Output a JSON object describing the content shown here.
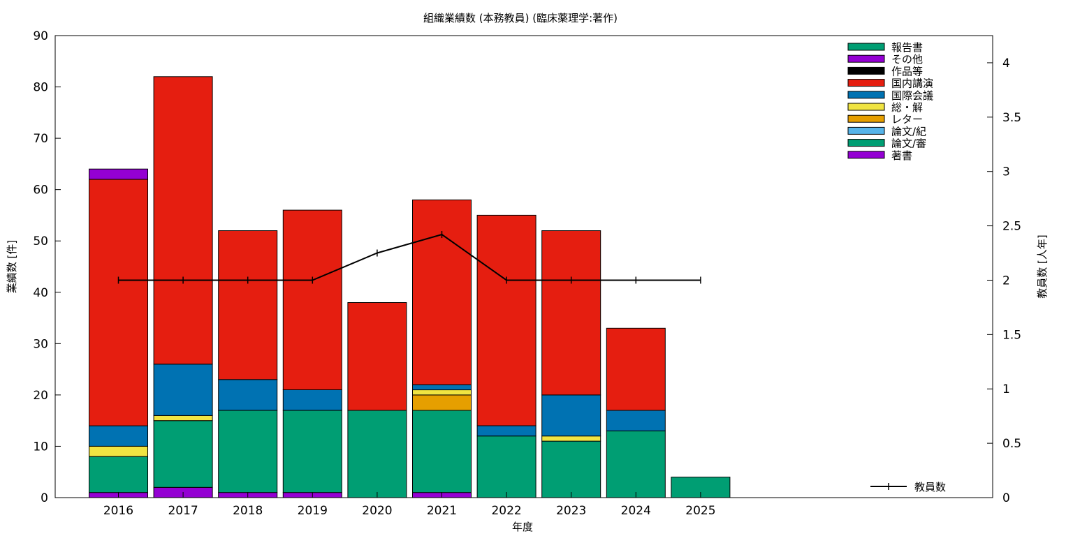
{
  "chart_data": {
    "type": "bar",
    "stacked": true,
    "title": "組織業績数 (本務教員) (臨床薬理学:著作)",
    "xlabel": "年度",
    "ylabel": "業績数 [件]",
    "y2label": "教員数 [人年]",
    "ylim": [
      0,
      90
    ],
    "y2lim": [
      0,
      4.25
    ],
    "yticks": [
      "0",
      "10",
      "20",
      "30",
      "40",
      "50",
      "60",
      "70",
      "80",
      "90"
    ],
    "y2ticks": [
      "0",
      "0.5",
      "1",
      "1.5",
      "2",
      "2.5",
      "3",
      "3.5",
      "4"
    ],
    "categories": [
      "2016",
      "2017",
      "2018",
      "2019",
      "2020",
      "2021",
      "2022",
      "2023",
      "2024",
      "2025"
    ],
    "legend_position": "top-right",
    "series": [
      {
        "name": "著書",
        "color": "#9400d3",
        "values": [
          1,
          2,
          1,
          1,
          0,
          1,
          0,
          0,
          0,
          0
        ]
      },
      {
        "name": "論文/審",
        "color": "#009e73",
        "values": [
          7,
          13,
          16,
          16,
          17,
          16,
          12,
          11,
          13,
          4
        ]
      },
      {
        "name": "論文/紀",
        "color": "#56b4e9",
        "values": [
          0,
          0,
          0,
          0,
          0,
          0,
          0,
          0,
          0,
          0
        ]
      },
      {
        "name": "レター",
        "color": "#e69f00",
        "values": [
          0,
          0,
          0,
          0,
          0,
          3,
          0,
          0,
          0,
          0
        ]
      },
      {
        "name": "総・解",
        "color": "#f0e442",
        "values": [
          2,
          1,
          0,
          0,
          0,
          1,
          0,
          1,
          0,
          0
        ]
      },
      {
        "name": "国際会議",
        "color": "#0072b2",
        "values": [
          4,
          10,
          6,
          4,
          0,
          1,
          2,
          8,
          4,
          0
        ]
      },
      {
        "name": "国内講演",
        "color": "#e51e10",
        "values": [
          48,
          56,
          29,
          35,
          21,
          36,
          41,
          32,
          16,
          0
        ]
      },
      {
        "name": "作品等",
        "color": "#000000",
        "values": [
          0,
          0,
          0,
          0,
          0,
          0,
          0,
          0,
          0,
          0
        ]
      },
      {
        "name": "その他",
        "color": "#9400d3",
        "values": [
          2,
          0,
          0,
          0,
          0,
          0,
          0,
          0,
          0,
          0
        ]
      },
      {
        "name": "報告書",
        "color": "#009e73",
        "values": [
          0,
          0,
          0,
          0,
          0,
          0,
          0,
          0,
          0,
          0
        ]
      }
    ],
    "line_series": {
      "name": "教員数",
      "color": "#000000",
      "axis": "y2",
      "values": [
        2,
        2,
        2,
        2,
        2.25,
        2.42,
        2,
        2,
        2,
        2
      ]
    }
  }
}
